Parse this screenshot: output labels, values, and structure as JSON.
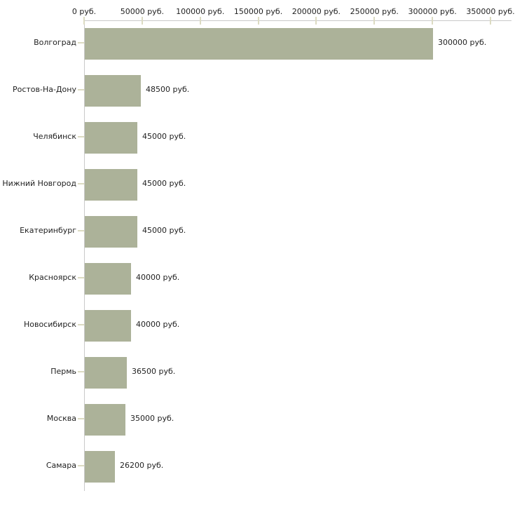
{
  "chart_data": {
    "type": "bar",
    "orientation": "horizontal",
    "title": "",
    "categories": [
      "Волгоград",
      "Ростов-На-Дону",
      "Челябинск",
      "Нижний Новгород",
      "Екатеринбург",
      "Красноярск",
      "Новосибирск",
      "Пермь",
      "Москва",
      "Самара"
    ],
    "values": [
      300000,
      48500,
      45000,
      45000,
      45000,
      40000,
      40000,
      36500,
      35000,
      26200
    ],
    "value_labels": [
      "300000 руб.",
      "48500 руб.",
      "45000 руб.",
      "45000 руб.",
      "45000 руб.",
      "40000 руб.",
      "40000 руб.",
      "36500 руб.",
      "35000 руб.",
      "26200 руб."
    ],
    "x_axis": {
      "position": "top",
      "unit": "руб.",
      "min": 0,
      "max": 350000,
      "tick_interval": 50000,
      "ticks": [
        0,
        50000,
        100000,
        150000,
        200000,
        250000,
        300000,
        350000
      ],
      "tick_labels": [
        "0 руб.",
        "50000 руб.",
        "100000 руб.",
        "150000 руб.",
        "200000 руб.",
        "250000 руб.",
        "300000 руб.",
        "350000 руб."
      ]
    },
    "grid": false,
    "legend": false,
    "colors": {
      "bar": "#acb299",
      "axis_line": "#c9c9c9",
      "tick_mark": "#dcdbc2",
      "text": "#1f1f1f",
      "background": "#ffffff"
    }
  }
}
